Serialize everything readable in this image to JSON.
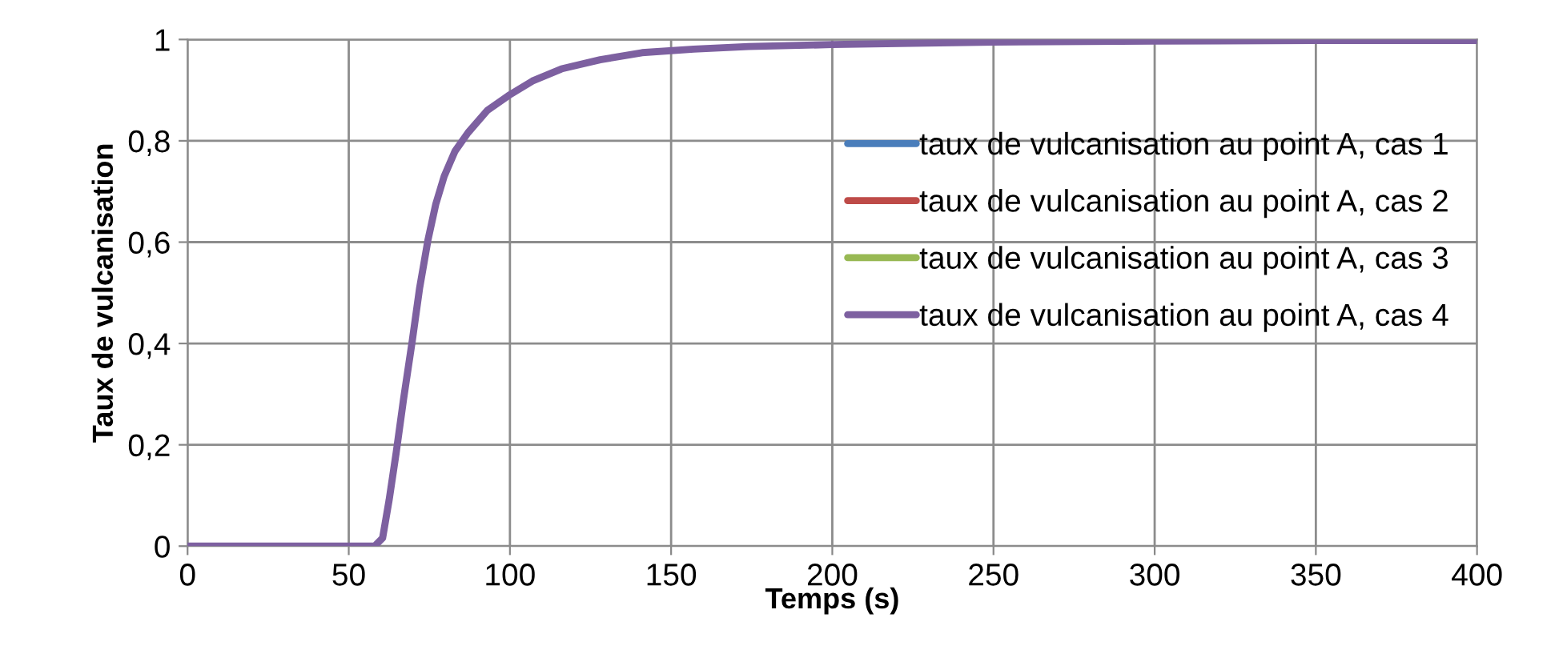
{
  "chart_data": {
    "type": "line",
    "xlabel": "Temps (s)",
    "ylabel": "Taux de vulcanisation",
    "xlim": [
      0,
      400
    ],
    "xticks": [
      0,
      50,
      100,
      150,
      200,
      250,
      300,
      350,
      400
    ],
    "ylim": [
      0,
      1
    ],
    "yticks": [
      {
        "value": 0,
        "label": "0"
      },
      {
        "value": 0.2,
        "label": "0,2"
      },
      {
        "value": 0.4,
        "label": "0,4"
      },
      {
        "value": 0.6,
        "label": "0,6"
      },
      {
        "value": 0.8,
        "label": "0,8"
      },
      {
        "value": 1,
        "label": "1"
      }
    ],
    "grid": true,
    "legend": "right",
    "marker": "none",
    "line_style": "solid",
    "x": [
      0,
      50,
      58,
      60.5,
      62.5,
      64.7,
      67,
      69.7,
      72,
      74.6,
      77,
      79.6,
      83,
      87,
      93,
      99.5,
      107,
      116,
      128,
      141,
      157,
      174,
      200,
      250,
      300,
      350,
      400
    ],
    "series": [
      {
        "name": "taux de vulcanisation au point A, cas 1",
        "color": "#4a7ebb",
        "values": [
          null,
          null,
          null,
          null,
          null,
          null,
          null,
          null,
          null,
          null,
          null,
          null,
          null,
          null,
          null,
          null,
          null,
          null,
          null,
          null,
          null,
          null,
          null,
          null,
          null,
          null,
          null
        ]
      },
      {
        "name": "taux de vulcanisation au point A, cas 2",
        "color": "#be4b48",
        "values": [
          null,
          null,
          null,
          null,
          null,
          null,
          null,
          null,
          null,
          null,
          null,
          null,
          null,
          null,
          null,
          null,
          null,
          null,
          null,
          null,
          null,
          null,
          null,
          null,
          null,
          null,
          null
        ]
      },
      {
        "name": "taux de vulcanisation au point A, cas 3",
        "color": "#98b954",
        "values": [
          null,
          null,
          null,
          null,
          null,
          null,
          null,
          null,
          null,
          null,
          null,
          null,
          null,
          null,
          null,
          null,
          null,
          null,
          null,
          null,
          null,
          null,
          null,
          null,
          null,
          null,
          null
        ]
      },
      {
        "name": "taux de vulcanisation au point A, cas 4",
        "color": "#7d60a0",
        "values": [
          0,
          0,
          0,
          0.016,
          0.09,
          0.184,
          0.29,
          0.405,
          0.51,
          0.605,
          0.675,
          0.73,
          0.78,
          0.816,
          0.86,
          0.889,
          0.918,
          0.942,
          0.96,
          0.974,
          0.981,
          0.986,
          0.99,
          0.995,
          0.997,
          0.998,
          0.998
        ]
      }
    ]
  }
}
